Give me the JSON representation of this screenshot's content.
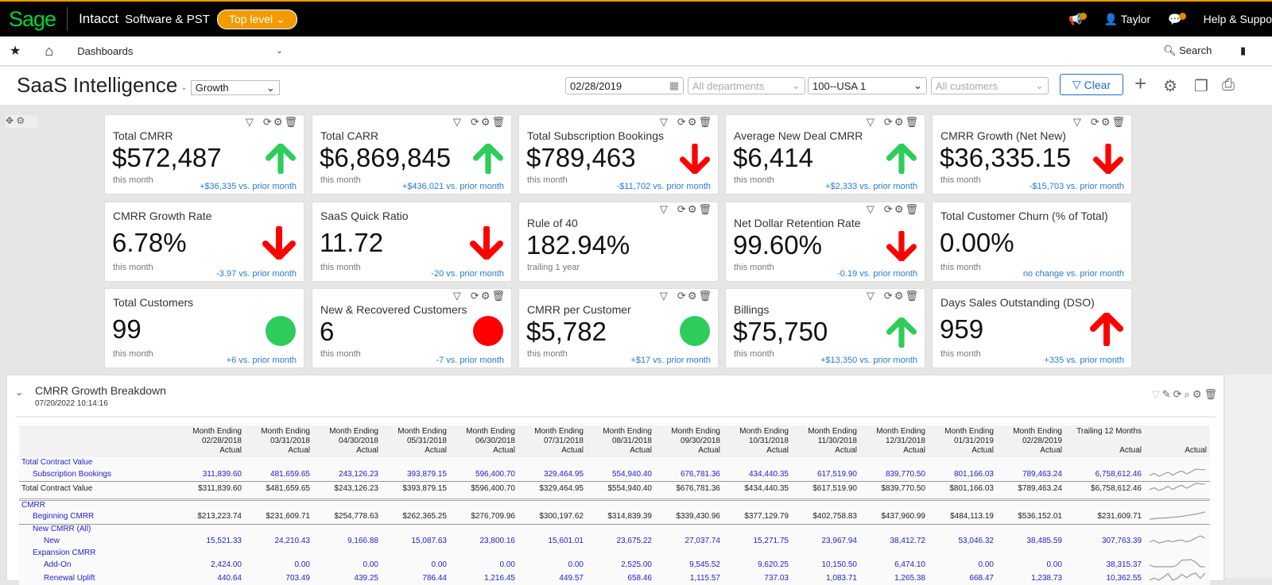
{
  "topbar": {
    "logo": "Sage",
    "product": "Intacct",
    "company": "Software & PST",
    "entity": "Top level",
    "user": "Taylor",
    "help": "Help & Suppo",
    "accent": "#f29a00"
  },
  "nav": {
    "menu": "Dashboards",
    "search": "Search"
  },
  "dashboard": {
    "title": "SaaS Intelligence",
    "view": "Growth",
    "date": "02/28/2019",
    "departments": "All departments",
    "location": "100--USA 1",
    "customers": "All customers",
    "clear": "Clear"
  },
  "cards": [
    {
      "title": "Total CMRR",
      "value": "$572,487",
      "sub": "this month",
      "change": "+$36,335 vs. prior month",
      "indicator": "up-green",
      "icons": true
    },
    {
      "title": "Total CARR",
      "value": "$6,869,845",
      "sub": "this month",
      "change": "+$436,021 vs. prior month",
      "indicator": "up-green",
      "icons": true
    },
    {
      "title": "Total Subscription Bookings",
      "value": "$789,463",
      "sub": "this month",
      "change": "-$11,702 vs. prior month",
      "indicator": "down-red",
      "icons": true
    },
    {
      "title": "Average New Deal CMRR",
      "value": "$6,414",
      "sub": "this month",
      "change": "+$2,333 vs. prior month",
      "indicator": "up-green",
      "icons": true
    },
    {
      "title": "CMRR Growth (Net New)",
      "value": "$36,335.15",
      "sub": "this month",
      "change": "-$15,703 vs. prior month",
      "indicator": "down-red",
      "icons": true
    },
    {
      "title": "CMRR Growth Rate",
      "value": "6.78%",
      "sub": "this month",
      "change": "-3.97 vs. prior month",
      "indicator": "down-red",
      "icons": false
    },
    {
      "title": "SaaS Quick Ratio",
      "value": "11.72",
      "sub": "this month",
      "change": "-20 vs. prior month",
      "indicator": "down-red",
      "icons": false
    },
    {
      "title": "Rule of 40",
      "value": "182.94%",
      "sub": "trailing 1 year",
      "change": "",
      "indicator": "none",
      "icons": true
    },
    {
      "title": "Net Dollar Retention Rate",
      "value": "99.60%",
      "sub": "this month",
      "change": "-0.19 vs. prior month",
      "indicator": "down-red",
      "icons": true
    },
    {
      "title": "Total Customer Churn (% of Total)",
      "value": "0.00%",
      "sub": "this month",
      "change": "no change vs. prior month",
      "indicator": "none",
      "icons": false
    },
    {
      "title": "Total Customers",
      "value": "99",
      "sub": "this month",
      "change": "+6 vs. prior month",
      "indicator": "circle-green",
      "icons": false
    },
    {
      "title": "New & Recovered Customers",
      "value": "6",
      "sub": "this month",
      "change": "-7 vs. prior month",
      "indicator": "circle-red",
      "icons": true
    },
    {
      "title": "CMRR per Customer",
      "value": "$5,782",
      "sub": "this month",
      "change": "+$17 vs. prior month",
      "indicator": "circle-green",
      "icons": true
    },
    {
      "title": "Billings",
      "value": "$75,750",
      "sub": "this month",
      "change": "+$13,350 vs. prior month",
      "indicator": "up-green",
      "icons": true
    },
    {
      "title": "Days Sales Outstanding (DSO)",
      "value": "959",
      "sub": "this month",
      "change": "+335 vs. prior month",
      "indicator": "up-red",
      "icons": false
    }
  ],
  "report": {
    "title": "CMRR Growth Breakdown",
    "timestamp": "07/20/2022 10:14:16",
    "months": [
      "02/28/2018",
      "03/31/2018",
      "04/30/2018",
      "05/31/2018",
      "06/30/2018",
      "07/31/2018",
      "08/31/2018",
      "09/30/2018",
      "10/31/2018",
      "11/30/2018",
      "12/31/2018",
      "01/31/2019",
      "02/28/2019"
    ],
    "month_label": "Month Ending",
    "actual_label": "Actual",
    "trailing_label": "Trailing 12 Months",
    "rows": [
      {
        "label": "Total Contract Value",
        "indent": 0,
        "type": "header"
      },
      {
        "label": "Subscription Bookings",
        "indent": 1,
        "type": "data",
        "values": [
          "311,839.60",
          "481,659.65",
          "243,126.23",
          "393,879.15",
          "596,400.70",
          "329,464.95",
          "554,940.40",
          "676,781.36",
          "434,440.35",
          "617,519.90",
          "839,770.50",
          "801,166.03",
          "789,463.24"
        ],
        "trailing": "6,758,612.46"
      },
      {
        "label": "Total Contract Value",
        "indent": 0,
        "type": "total",
        "values": [
          "$311,839.60",
          "$481,659.65",
          "$243,126.23",
          "$393,879.15",
          "$596,400.70",
          "$329,464.95",
          "$554,940.40",
          "$676,781.36",
          "$434,440.35",
          "$617,519.90",
          "$839,770.50",
          "$801,166.03",
          "$789,463.24"
        ],
        "trailing": "$6,758,612.46"
      },
      {
        "type": "double"
      },
      {
        "label": "CMRR",
        "indent": 0,
        "type": "header"
      },
      {
        "label": "Beginning CMRR",
        "indent": 1,
        "type": "money",
        "values": [
          "$213,223.74",
          "$231,609.71",
          "$254,778.63",
          "$262,365.25",
          "$276,709.96",
          "$300,197.62",
          "$314,839.39",
          "$339,430.96",
          "$377,129.79",
          "$402,758.83",
          "$437,960.99",
          "$484,113.19",
          "$536,152.01"
        ],
        "trailing": "$231,609.71"
      },
      {
        "label": "New CMRR (All)",
        "indent": 1,
        "type": "header",
        "topline": true
      },
      {
        "label": "New",
        "indent": 2,
        "type": "data",
        "values": [
          "15,521.33",
          "24,210.43",
          "9,166.88",
          "15,087.63",
          "23,800.16",
          "15,601.01",
          "23,675.22",
          "27,037.74",
          "15,271.75",
          "23,967.94",
          "38,412.72",
          "53,046.32",
          "38,485.59"
        ],
        "trailing": "307,763.39"
      },
      {
        "label": "Expansion CMRR",
        "indent": 1,
        "type": "header"
      },
      {
        "label": "Add-On",
        "indent": 2,
        "type": "data",
        "values": [
          "2,424.00",
          "0.00",
          "0.00",
          "0.00",
          "0.00",
          "0.00",
          "2,525.00",
          "9,545.52",
          "9,620.25",
          "10,150.50",
          "6,474.10",
          "0.00",
          "0.00"
        ],
        "trailing": "38,315.37"
      },
      {
        "label": "Renewal Uplift",
        "indent": 2,
        "type": "data",
        "values": [
          "440.64",
          "703.49",
          "439.25",
          "786.44",
          "1,216.45",
          "449.57",
          "658.46",
          "1,115.57",
          "737.03",
          "1,083.71",
          "1,265.38",
          "668.47",
          "1,238.73"
        ],
        "trailing": "10,362.55"
      }
    ]
  }
}
